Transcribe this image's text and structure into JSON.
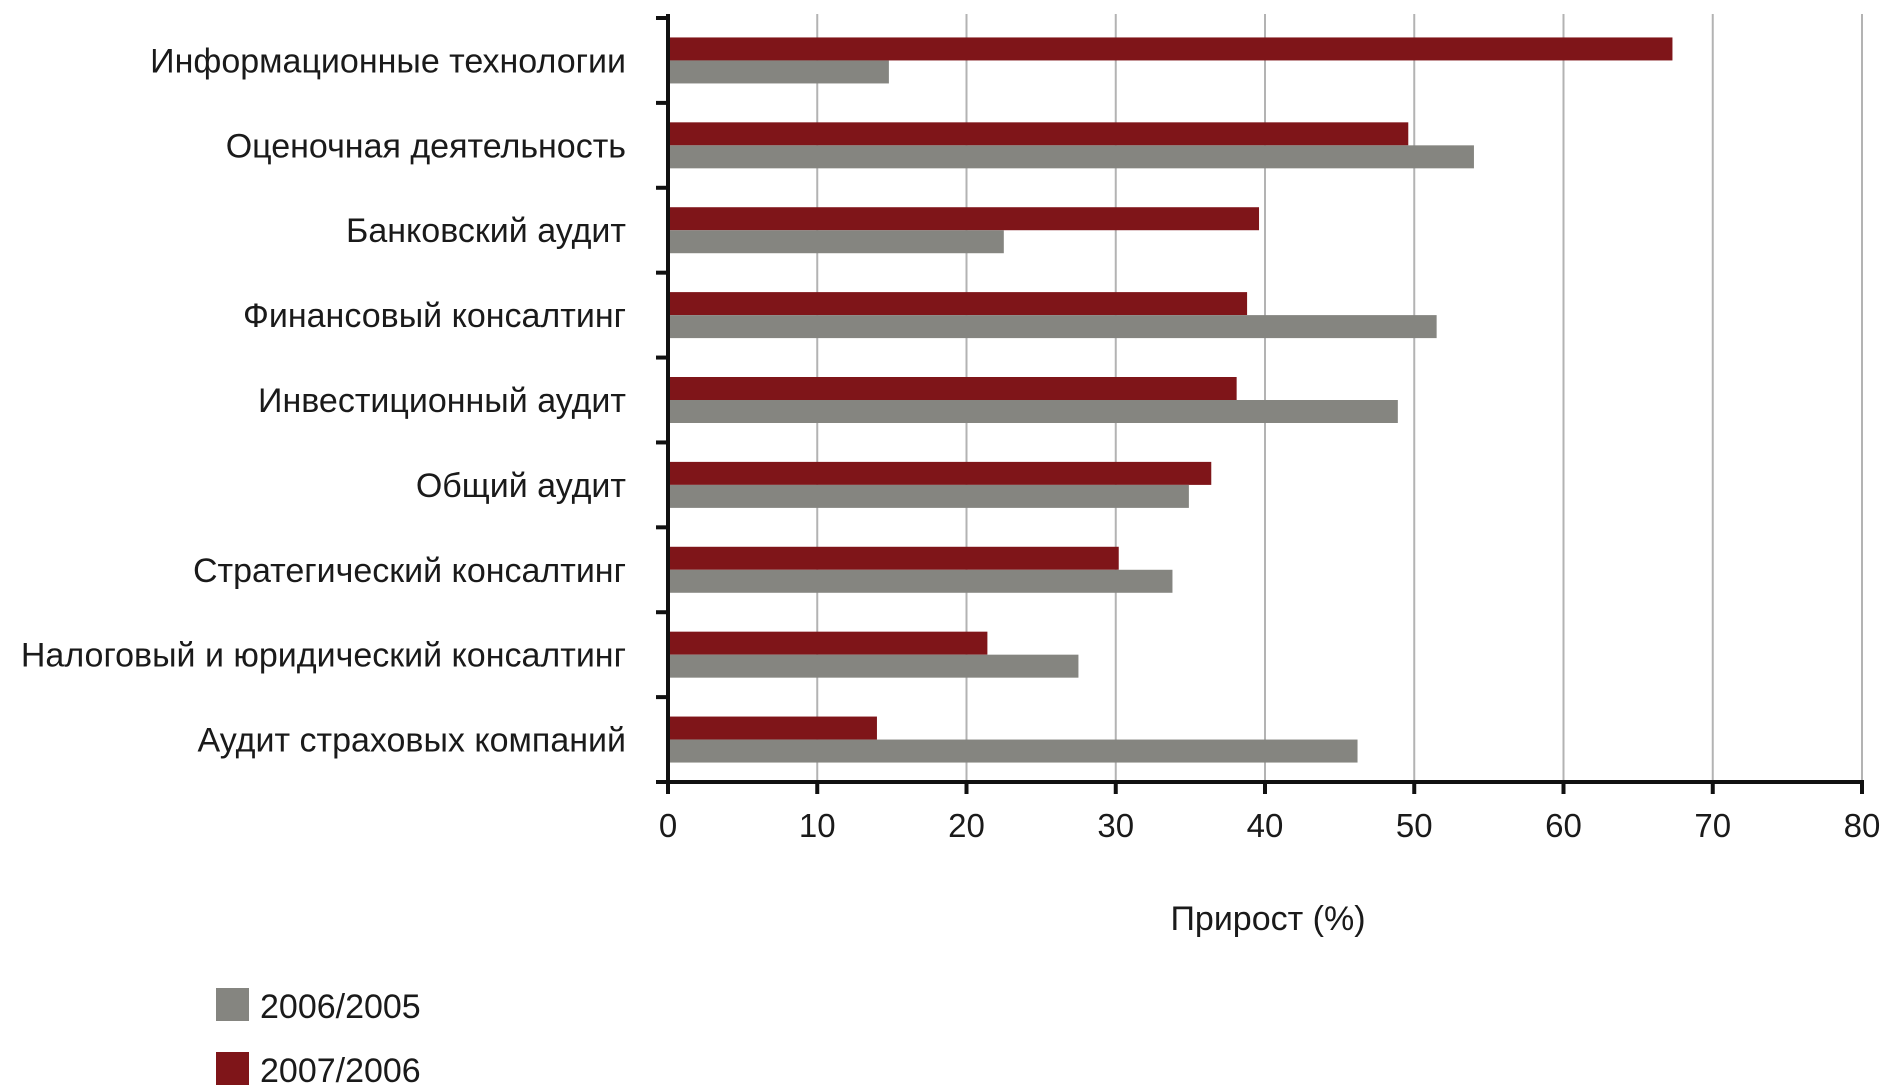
{
  "chart_data": {
    "type": "bar",
    "orientation": "horizontal",
    "categories": [
      "Информационные технологии",
      "Оценочная деятельность",
      "Банковский аудит",
      "Финансовый консалтинг",
      "Инвестиционный аудит",
      "Общий аудит",
      "Стратегический консалтинг",
      "Налоговый и юридический консалтинг",
      "Аудит страховых компаний"
    ],
    "series": [
      {
        "name": "2007/2006",
        "color": "#7f1519",
        "values": [
          67.3,
          49.6,
          39.6,
          38.8,
          38.1,
          36.4,
          30.2,
          21.4,
          14.0
        ]
      },
      {
        "name": "2006/2005",
        "color": "#858580",
        "values": [
          14.8,
          54.0,
          22.5,
          51.5,
          48.9,
          34.9,
          33.8,
          27.5,
          46.2
        ]
      }
    ],
    "xlabel": "Прирост (%)",
    "ylabel": "",
    "xlim": [
      0,
      80
    ],
    "xticks": [
      "0",
      "10",
      "20",
      "30",
      "40",
      "50",
      "60",
      "70",
      "80"
    ],
    "grid": "vertical",
    "legend": {
      "position": "bottom-left",
      "entries": [
        {
          "label": "2006/2005",
          "color": "#858580"
        },
        {
          "label": "2007/2006",
          "color": "#7f1519"
        }
      ]
    }
  }
}
